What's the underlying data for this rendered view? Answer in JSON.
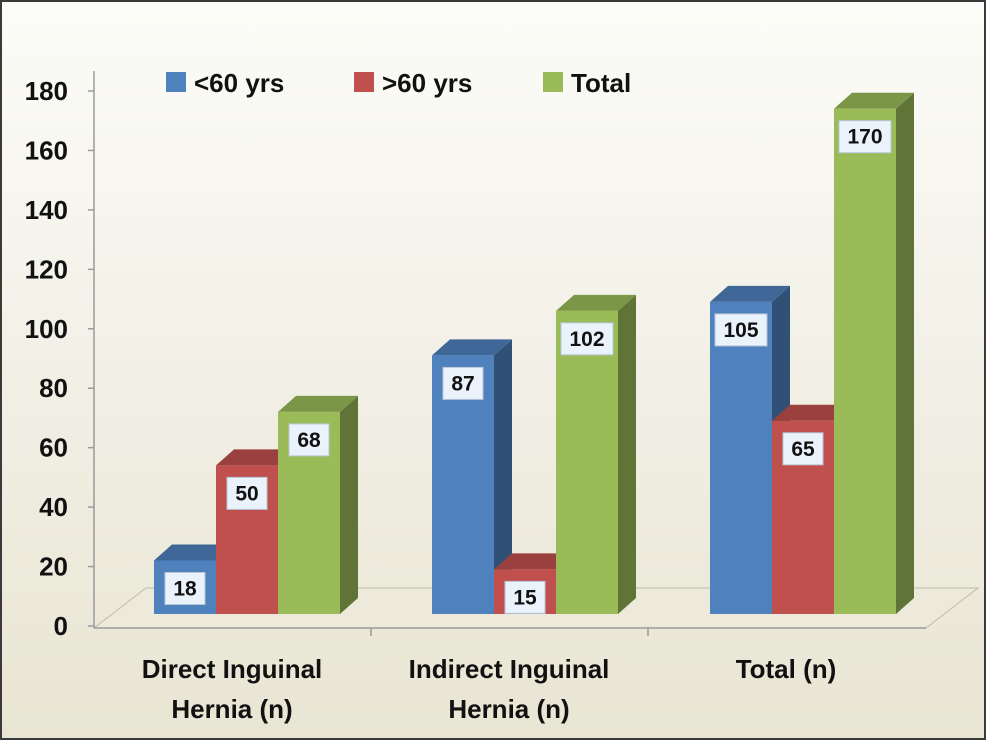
{
  "chart_data": {
    "type": "bar",
    "title": "",
    "xlabel": "",
    "ylabel": "",
    "ylim": [
      0,
      180
    ],
    "yticks": [
      0,
      20,
      40,
      60,
      80,
      100,
      120,
      140,
      160,
      180
    ],
    "categories": [
      [
        "Direct Inguinal",
        "Hernia (n)"
      ],
      [
        "Indirect Inguinal",
        "Hernia (n)"
      ],
      [
        "Total (n)"
      ]
    ],
    "series": [
      {
        "name": "<60 yrs",
        "values": [
          18,
          87,
          105
        ],
        "color": "#4f81bd"
      },
      {
        "name": ">60 yrs",
        "values": [
          50,
          15,
          65
        ],
        "color": "#c0504d"
      },
      {
        "name": "Total",
        "values": [
          68,
          102,
          170
        ],
        "color": "#9bbb59"
      }
    ],
    "legend_position": "top",
    "grid": false,
    "style": "3d-column"
  }
}
